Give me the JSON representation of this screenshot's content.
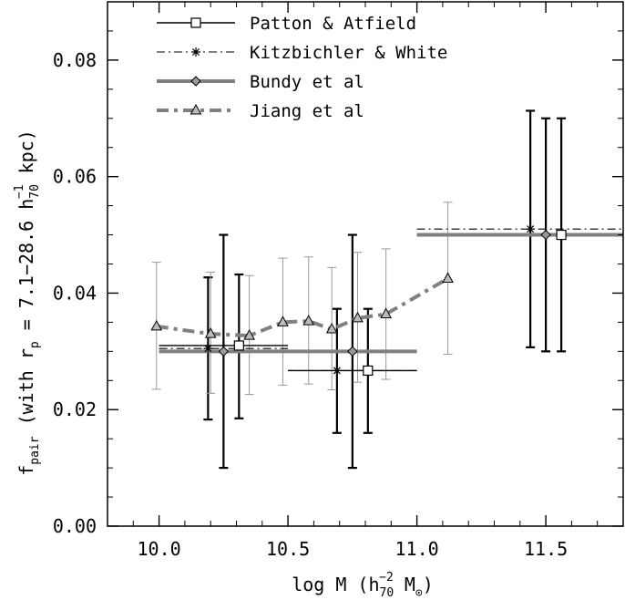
{
  "chart_data": {
    "type": "line",
    "xlabel_parts": [
      "log M (h",
      "70",
      "−2",
      " M",
      "⊙",
      ")"
    ],
    "ylabel_parts": [
      "f",
      "pair",
      " (with r",
      "p",
      " = 7.1−28.6 h",
      "70",
      "−1",
      " kpc)"
    ],
    "xlim": [
      9.8,
      11.8
    ],
    "ylim": [
      0.0,
      0.09
    ],
    "xticks": [
      10.0,
      10.5,
      11.0,
      11.5
    ],
    "xtick_labels": [
      "10.0",
      "10.5",
      "11.0",
      "11.5"
    ],
    "yticks": [
      0.0,
      0.02,
      0.04,
      0.06,
      0.08
    ],
    "ytick_labels": [
      "0.00",
      "0.02",
      "0.04",
      "0.06",
      "0.08"
    ],
    "legend_position": "top-left",
    "grid": false,
    "series": [
      {
        "name": "Patton & Atfield",
        "color": "#000000",
        "marker": "square",
        "line": "solid",
        "points": [
          {
            "x": 10.31,
            "y": 0.031,
            "ylo": 0.0185,
            "yhi": 0.0432,
            "xmin": 10.0,
            "xmax": 10.5
          },
          {
            "x": 10.81,
            "y": 0.0267,
            "ylo": 0.016,
            "yhi": 0.0373,
            "xmin": 10.5,
            "xmax": 11.0
          },
          {
            "x": 11.56,
            "y": 0.05,
            "ylo": 0.03,
            "yhi": 0.07,
            "xmin": 11.0,
            "xmax": 11.8
          }
        ]
      },
      {
        "name": "Kitzbichler & White",
        "color": "#000000",
        "marker": "asterisk",
        "line": "dash-dot",
        "points": [
          {
            "x": 10.19,
            "y": 0.0305,
            "ylo": 0.0183,
            "yhi": 0.0427,
            "xmin": 10.0,
            "xmax": 10.5
          },
          {
            "x": 10.69,
            "y": 0.0267,
            "ylo": 0.016,
            "yhi": 0.0373,
            "xmin": 10.5,
            "xmax": 11.0
          },
          {
            "x": 11.44,
            "y": 0.051,
            "ylo": 0.0307,
            "yhi": 0.0713,
            "xmin": 11.0,
            "xmax": 11.8
          }
        ]
      },
      {
        "name": "Bundy et al",
        "color": "#808080",
        "errcolor": "#000000",
        "marker": "diamond",
        "line": "thick-solid",
        "points": [
          {
            "x": 10.25,
            "y": 0.03,
            "ylo": 0.01,
            "yhi": 0.05,
            "xmin": 10.0,
            "xmax": 11.0
          },
          {
            "x": 10.75,
            "y": 0.03,
            "ylo": 0.01,
            "yhi": 0.05,
            "xmin": 10.0,
            "xmax": 11.0
          },
          {
            "x": 11.5,
            "y": 0.05,
            "ylo": 0.03,
            "yhi": 0.07,
            "xmin": 11.0,
            "xmax": 11.8
          }
        ]
      },
      {
        "name": "Jiang et al",
        "color": "#808080",
        "errcolor": "#999999",
        "marker": "triangle",
        "line": "thick-dash-dot",
        "points": [
          {
            "x": 9.99,
            "y": 0.0343,
            "ylo": 0.0235,
            "yhi": 0.0453
          },
          {
            "x": 10.2,
            "y": 0.033,
            "ylo": 0.0228,
            "yhi": 0.0436
          },
          {
            "x": 10.35,
            "y": 0.0327,
            "ylo": 0.0226,
            "yhi": 0.043
          },
          {
            "x": 10.48,
            "y": 0.035,
            "ylo": 0.0242,
            "yhi": 0.046
          },
          {
            "x": 10.58,
            "y": 0.0352,
            "ylo": 0.0244,
            "yhi": 0.0462
          },
          {
            "x": 10.67,
            "y": 0.0338,
            "ylo": 0.0234,
            "yhi": 0.0444
          },
          {
            "x": 10.77,
            "y": 0.0357,
            "ylo": 0.0247,
            "yhi": 0.047
          },
          {
            "x": 10.88,
            "y": 0.0364,
            "ylo": 0.0252,
            "yhi": 0.0476
          },
          {
            "x": 11.12,
            "y": 0.0425,
            "ylo": 0.0295,
            "yhi": 0.0556
          }
        ]
      }
    ]
  }
}
